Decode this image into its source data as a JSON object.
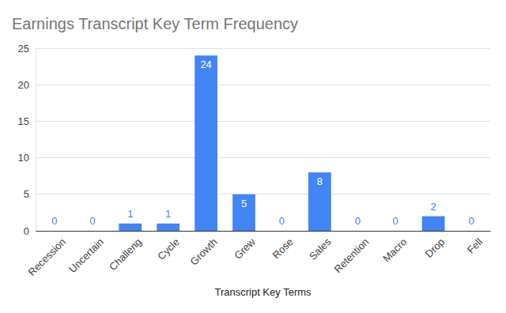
{
  "chart_data": {
    "type": "bar",
    "title": "Earnings Transcript Key Term Frequency",
    "x_label": "Transcript Key Terms",
    "categories": [
      "Recession",
      "Uncertain",
      "Challeng",
      "Cycle",
      "Growth",
      "Grew",
      "Rose",
      "Sales",
      "Retention",
      "Macro",
      "Drop",
      "Fell"
    ],
    "values": [
      0,
      0,
      1,
      1,
      24,
      5,
      0,
      8,
      0,
      0,
      2,
      0
    ],
    "color": "#4285f4",
    "ylim": [
      0,
      25
    ],
    "yticks": [
      0,
      5,
      10,
      15,
      20,
      25
    ],
    "grid": true,
    "data_labels": true
  }
}
